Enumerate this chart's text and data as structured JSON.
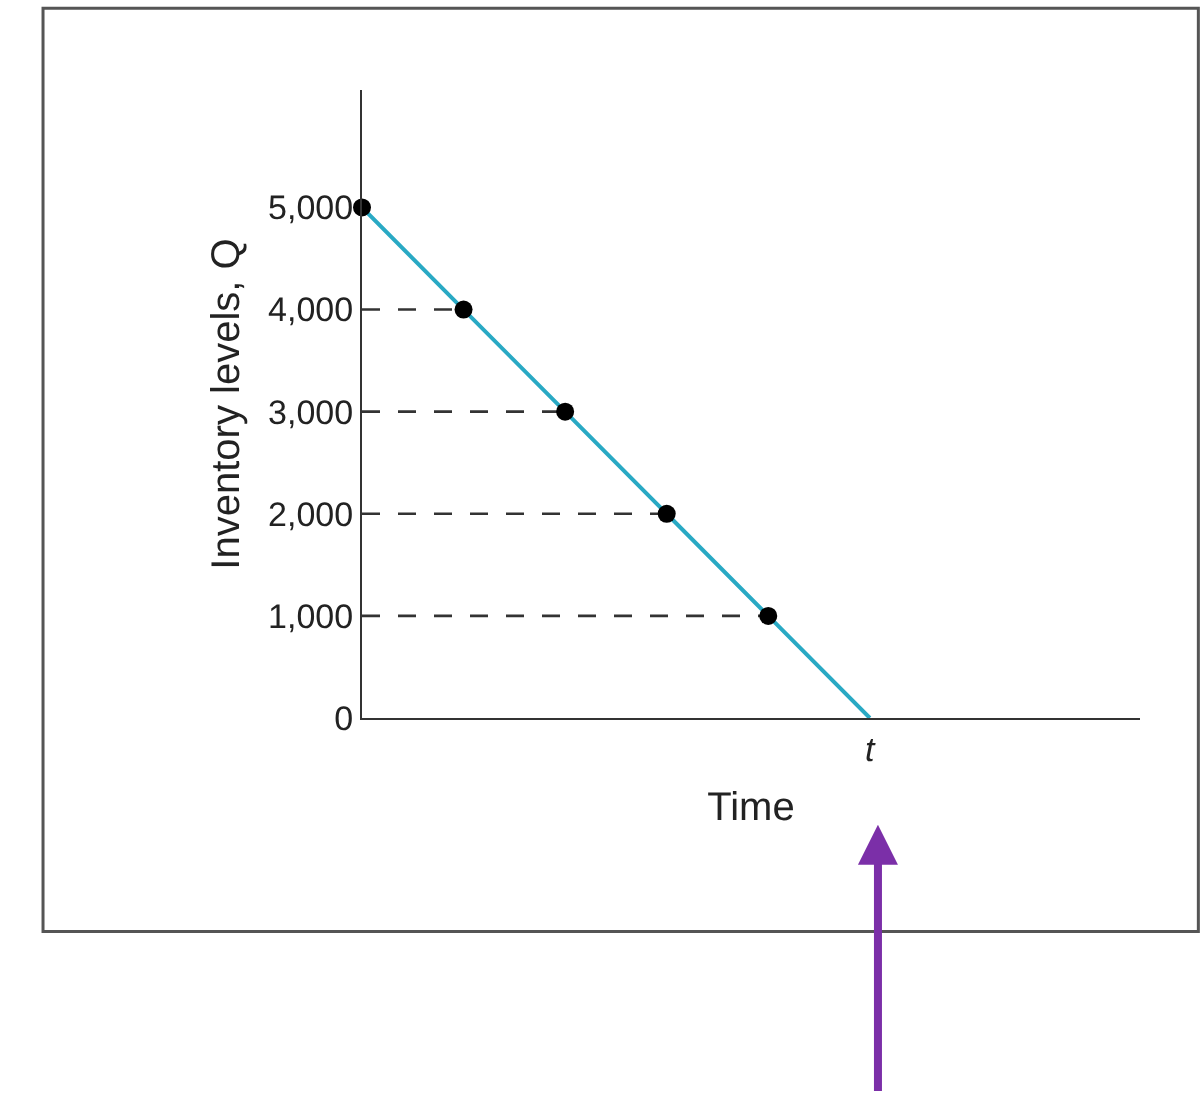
{
  "chart_data": {
    "type": "line",
    "xlabel": "Time",
    "ylabel": "Inventory levels, Q",
    "categories": [
      null,
      null,
      null,
      null,
      null,
      "t"
    ],
    "ylim": [
      0,
      6150
    ],
    "yticks": [
      {
        "value": 0,
        "label": "0"
      },
      {
        "value": 1000,
        "label": "1,000"
      },
      {
        "value": 2000,
        "label": "2,000"
      },
      {
        "value": 3000,
        "label": "3,000"
      },
      {
        "value": 4000,
        "label": "4,000"
      },
      {
        "value": 5000,
        "label": "5,000"
      }
    ],
    "series": [
      {
        "color": "#29a9c4",
        "values": [
          5000,
          4000,
          3000,
          2000,
          1000,
          0
        ],
        "line_style": "solid",
        "marker": "none"
      },
      {
        "color": "#333333",
        "values": [
          4000,
          4000,
          null,
          null,
          null,
          null
        ],
        "line_style": "dashed",
        "marker": "none"
      },
      {
        "color": "#333333",
        "values": [
          3000,
          3000,
          3000,
          null,
          null,
          null
        ],
        "line_style": "dashed",
        "marker": "none"
      },
      {
        "color": "#333333",
        "values": [
          2000,
          2000,
          2000,
          2000,
          null,
          null
        ],
        "line_style": "dashed",
        "marker": "none"
      },
      {
        "color": "#333333",
        "values": [
          1000,
          1000,
          1000,
          1000,
          1000,
          null
        ],
        "line_style": "dashed",
        "marker": "none"
      },
      {
        "type": "scatter",
        "color": "#000000",
        "values": [
          5000,
          4000,
          3000,
          2000,
          1000,
          null
        ],
        "marker": "circle"
      }
    ]
  }
}
